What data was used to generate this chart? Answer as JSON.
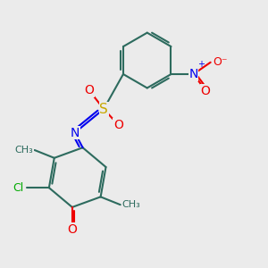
{
  "bg_color": "#ebebeb",
  "bond_color": "#2d6b5e",
  "bond_lw": 1.5,
  "S_color": "#c8a800",
  "N_color": "#0000ee",
  "O_color": "#ee0000",
  "Cl_color": "#00aa00",
  "figsize": [
    3.0,
    3.0
  ],
  "dpi": 100,
  "xlim": [
    0,
    10
  ],
  "ylim": [
    0,
    10
  ]
}
